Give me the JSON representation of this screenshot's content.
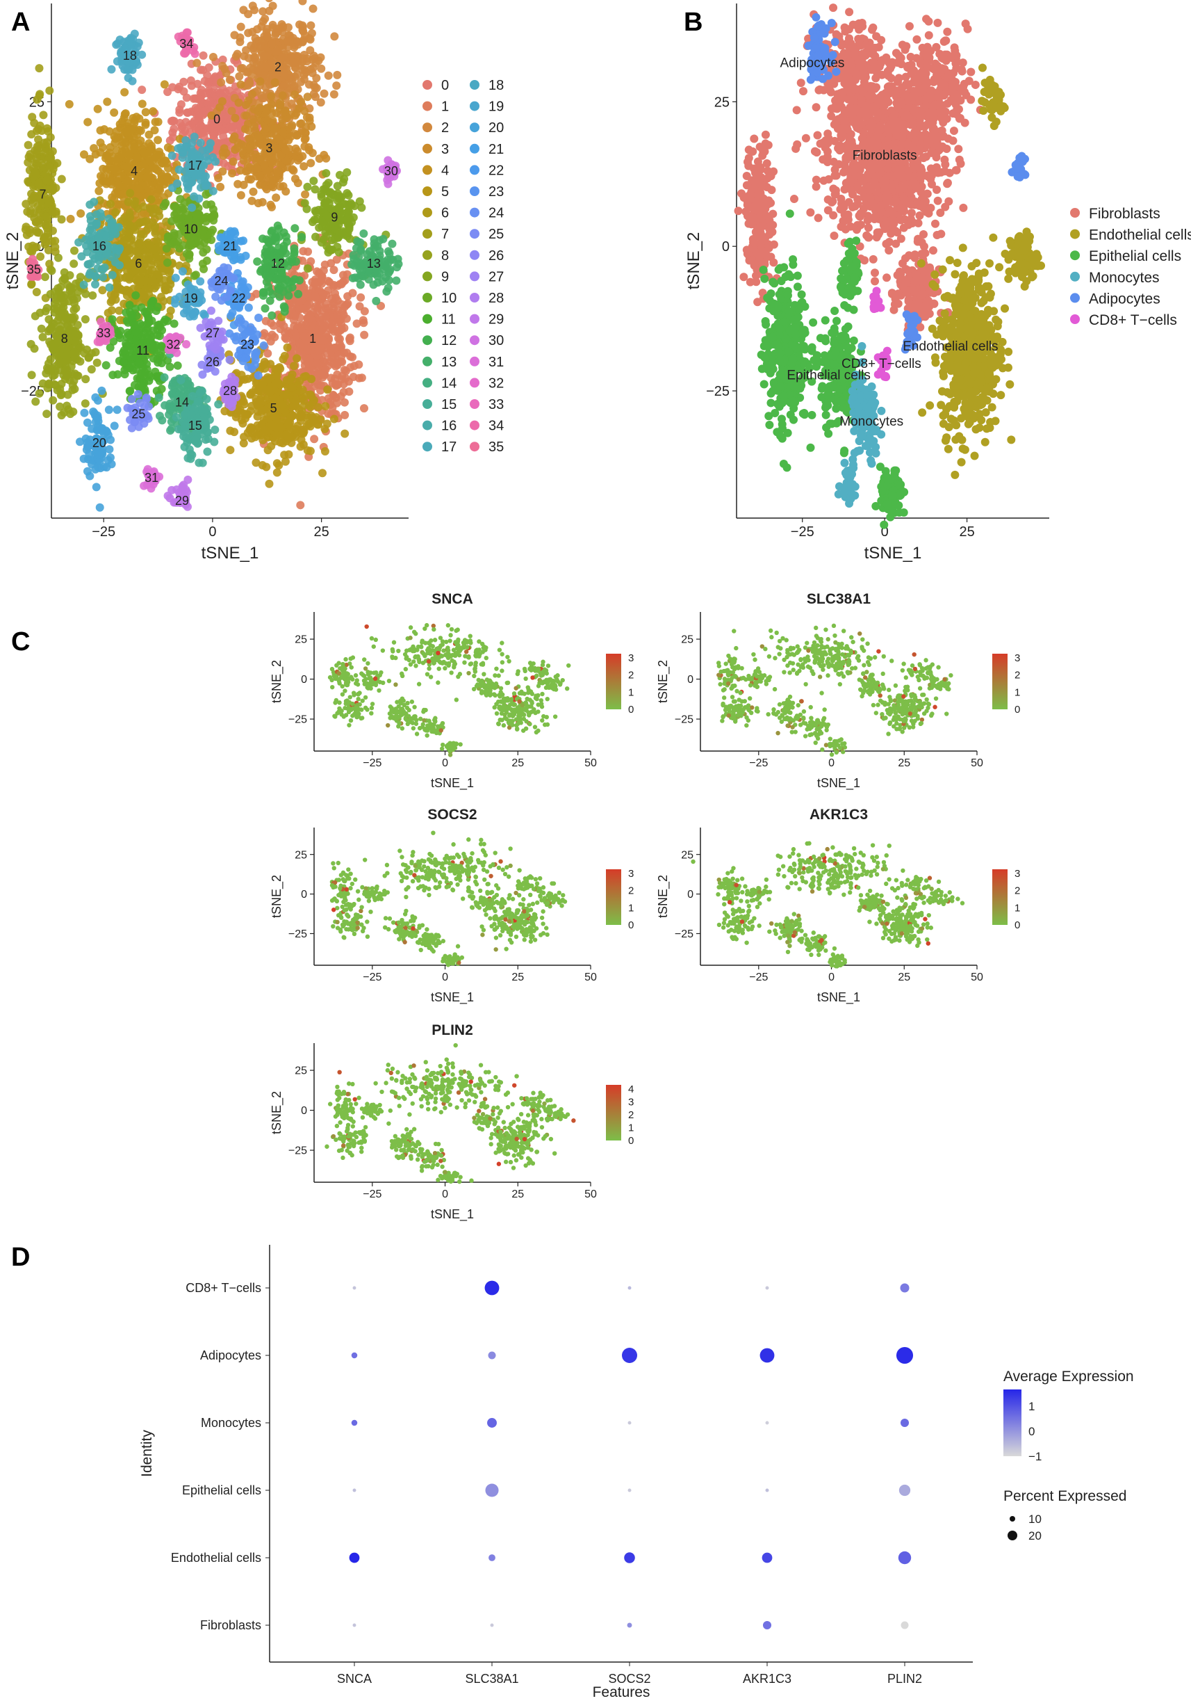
{
  "figure": {
    "panels": [
      {
        "id": "A",
        "label": "A"
      },
      {
        "id": "B",
        "label": "B"
      },
      {
        "id": "C",
        "label": "C"
      },
      {
        "id": "D",
        "label": "D"
      }
    ]
  },
  "chart_data": [
    {
      "panel": "A",
      "type": "scatter",
      "title": "",
      "xlabel": "tSNE_1",
      "ylabel": "tSNE_2",
      "xlim": [
        -37,
        45
      ],
      "ylim": [
        -47,
        42
      ],
      "xticks": [
        -25,
        0,
        25
      ],
      "yticks": [
        -25,
        0,
        25
      ],
      "tick_labels_x": [
        "−25",
        "0",
        "25"
      ],
      "tick_labels_y": [
        "−25",
        "0",
        "25"
      ],
      "legend_position": "right",
      "clusters": [
        {
          "id": "0",
          "x": 1,
          "y": 22,
          "sx": 9,
          "sy": 8,
          "color": "#E2786E"
        },
        {
          "id": "1",
          "x": 23,
          "y": -16,
          "sx": 9,
          "sy": 13,
          "color": "#DE7C5B"
        },
        {
          "id": "2",
          "x": 15,
          "y": 31,
          "sx": 9,
          "sy": 8,
          "color": "#D2883D"
        },
        {
          "id": "3",
          "x": 13,
          "y": 17,
          "sx": 8,
          "sy": 8,
          "color": "#CB8B2C"
        },
        {
          "id": "4",
          "x": -18,
          "y": 13,
          "sx": 8,
          "sy": 10,
          "color": "#C39120"
        },
        {
          "id": "5",
          "x": 14,
          "y": -28,
          "sx": 9,
          "sy": 8,
          "color": "#B89618"
        },
        {
          "id": "6",
          "x": -17,
          "y": -3,
          "sx": 8,
          "sy": 9,
          "color": "#AF9A18"
        },
        {
          "id": "7",
          "x": -39,
          "y": 9,
          "sx": 3.5,
          "sy": 12,
          "color": "#A39E1B"
        },
        {
          "id": "8",
          "x": -34,
          "y": -16,
          "sx": 5,
          "sy": 10,
          "color": "#96A21D"
        },
        {
          "id": "9",
          "x": 28,
          "y": 5,
          "sx": 5,
          "sy": 6,
          "color": "#84A620"
        },
        {
          "id": "10",
          "x": -5,
          "y": 3,
          "sx": 5,
          "sy": 6,
          "color": "#6BAA26"
        },
        {
          "id": "11",
          "x": -16,
          "y": -18,
          "sx": 6,
          "sy": 7,
          "color": "#4BAE2E"
        },
        {
          "id": "12",
          "x": 15,
          "y": -3,
          "sx": 4,
          "sy": 6,
          "color": "#43AF4F"
        },
        {
          "id": "13",
          "x": 37,
          "y": -3,
          "sx": 5,
          "sy": 4,
          "color": "#44AF6A"
        },
        {
          "id": "14",
          "x": -7,
          "y": -27,
          "sx": 4,
          "sy": 5,
          "color": "#45AF82"
        },
        {
          "id": "15",
          "x": -4,
          "y": -31,
          "sx": 4,
          "sy": 5,
          "color": "#47AE98"
        },
        {
          "id": "16",
          "x": -26,
          "y": 0,
          "sx": 4,
          "sy": 5,
          "color": "#49ACAA"
        },
        {
          "id": "17",
          "x": -4,
          "y": 14,
          "sx": 4,
          "sy": 4,
          "color": "#4AAAB9"
        },
        {
          "id": "18",
          "x": -19,
          "y": 33,
          "sx": 3,
          "sy": 4,
          "color": "#4AA8C3"
        },
        {
          "id": "19",
          "x": -5,
          "y": -9,
          "sx": 3,
          "sy": 3,
          "color": "#49A6CE"
        },
        {
          "id": "20",
          "x": -26,
          "y": -34,
          "sx": 3,
          "sy": 6,
          "color": "#46A3DA"
        },
        {
          "id": "21",
          "x": 4,
          "y": 0,
          "sx": 3,
          "sy": 3,
          "color": "#459FE6"
        },
        {
          "id": "22",
          "x": 6,
          "y": -9,
          "sx": 2.5,
          "sy": 3,
          "color": "#4C9AEC"
        },
        {
          "id": "23",
          "x": 8,
          "y": -17,
          "sx": 2.5,
          "sy": 4,
          "color": "#5994EF"
        },
        {
          "id": "24",
          "x": 2,
          "y": -6,
          "sx": 2.5,
          "sy": 2.5,
          "color": "#6890F2"
        },
        {
          "id": "25",
          "x": -17,
          "y": -29,
          "sx": 2.5,
          "sy": 2.5,
          "color": "#7B8BF4"
        },
        {
          "id": "26",
          "x": 0,
          "y": -20,
          "sx": 2,
          "sy": 2,
          "color": "#8E86F4"
        },
        {
          "id": "27",
          "x": 0,
          "y": -15,
          "sx": 2,
          "sy": 2.5,
          "color": "#9F82F3"
        },
        {
          "id": "28",
          "x": 4,
          "y": -25,
          "sx": 2,
          "sy": 2.5,
          "color": "#B07DEF"
        },
        {
          "id": "29",
          "x": -7,
          "y": -44,
          "sx": 2,
          "sy": 2,
          "color": "#C078EA"
        },
        {
          "id": "30",
          "x": 41,
          "y": 13,
          "sx": 1.5,
          "sy": 2,
          "color": "#CF72E2"
        },
        {
          "id": "31",
          "x": -14,
          "y": -40,
          "sx": 1.5,
          "sy": 1.5,
          "color": "#DB6ED8"
        },
        {
          "id": "32",
          "x": -9,
          "y": -17,
          "sx": 1.5,
          "sy": 1.5,
          "color": "#E46BCB"
        },
        {
          "id": "33",
          "x": -25,
          "y": -15,
          "sx": 1.5,
          "sy": 1.5,
          "color": "#E96ABC"
        },
        {
          "id": "34",
          "x": -6,
          "y": 35,
          "sx": 1.5,
          "sy": 1.5,
          "color": "#EC6AAA"
        },
        {
          "id": "35",
          "x": -41,
          "y": -4,
          "sx": 1.2,
          "sy": 1.5,
          "color": "#ED6D97"
        }
      ]
    },
    {
      "panel": "B",
      "type": "scatter",
      "title": "",
      "xlabel": "tSNE_1",
      "ylabel": "tSNE_2",
      "xlim": [
        -45,
        50
      ],
      "ylim": [
        -47,
        42
      ],
      "xticks": [
        -25,
        0,
        25
      ],
      "yticks": [
        -25,
        0,
        25
      ],
      "tick_labels_x": [
        "−25",
        "0",
        "25"
      ],
      "tick_labels_y": [
        "−25",
        "0",
        "25"
      ],
      "legend_position": "right",
      "series": [
        {
          "name": "Fibroblasts",
          "color": "#E2786E"
        },
        {
          "name": "Endothelial cells",
          "color": "#B0A022"
        },
        {
          "name": "Epithelial cells",
          "color": "#4CB849"
        },
        {
          "name": "Monocytes",
          "color": "#52AFC3"
        },
        {
          "name": "Adipocytes",
          "color": "#5B8DEE"
        },
        {
          "name": "CD8+ T−cells",
          "color": "#E25AD6"
        }
      ],
      "annotations": [
        "Adipocytes",
        "Fibroblasts",
        "CD8+ T−cells",
        "Endothelial cells",
        "Epithelial cells",
        "Monocytes"
      ]
    },
    {
      "panel": "C",
      "type": "scatter",
      "subtype": "feature-plots",
      "xlabel": "tSNE_1",
      "ylabel": "tSNE_2",
      "xlim": [
        -45,
        50
      ],
      "ylim": [
        -45,
        42
      ],
      "xticks": [
        -25,
        0,
        25,
        50
      ],
      "yticks": [
        -25,
        0,
        25
      ],
      "tick_labels_x": [
        "−25",
        "0",
        "25",
        "50"
      ],
      "tick_labels_y": [
        "−25",
        "0",
        "25"
      ],
      "color_low": "#7DBE49",
      "color_high": "#D63C28",
      "plots": [
        {
          "gene": "SNCA",
          "colorbar_ticks": [
            "3",
            "2",
            "1",
            "0"
          ],
          "max": 3
        },
        {
          "gene": "SLC38A1",
          "colorbar_ticks": [
            "3",
            "2",
            "1",
            "0"
          ],
          "max": 3
        },
        {
          "gene": "SOCS2",
          "colorbar_ticks": [
            "3",
            "2",
            "1",
            "0"
          ],
          "max": 3
        },
        {
          "gene": "AKR1C3",
          "colorbar_ticks": [
            "3",
            "2",
            "1",
            "0"
          ],
          "max": 3
        },
        {
          "gene": "PLIN2",
          "colorbar_ticks": [
            "4",
            "3",
            "2",
            "1",
            "0"
          ],
          "max": 4
        }
      ]
    },
    {
      "panel": "D",
      "type": "scatter",
      "subtype": "dot-plot",
      "xlabel": "Features",
      "ylabel": "Identity",
      "features": [
        "SNCA",
        "SLC38A1",
        "SOCS2",
        "AKR1C3",
        "PLIN2"
      ],
      "identities": [
        "CD8+ T−cells",
        "Adipocytes",
        "Monocytes",
        "Epithelial cells",
        "Endothelial cells",
        "Fibroblasts"
      ],
      "avg_expression": [
        [
          -1.3,
          1.6,
          -1.1,
          -1.4,
          0.1
        ],
        [
          0.3,
          -0.2,
          1.4,
          1.5,
          1.6
        ],
        [
          0.4,
          0.5,
          -1.4,
          -1.5,
          0.4
        ],
        [
          -1.2,
          -0.3,
          -1.4,
          -1.2,
          -0.8
        ],
        [
          1.7,
          0.0,
          1.3,
          1.1,
          0.6
        ],
        [
          -1.3,
          -1.4,
          -0.3,
          0.3,
          -1.7
        ]
      ],
      "pct_expressed": [
        [
          1,
          18,
          1,
          1,
          7
        ],
        [
          3,
          5,
          20,
          18,
          24
        ],
        [
          3,
          8,
          1,
          1,
          6
        ],
        [
          1,
          15,
          1,
          1,
          11
        ],
        [
          9,
          4,
          10,
          9,
          14
        ],
        [
          1,
          1,
          2,
          6,
          5
        ]
      ],
      "legend": {
        "color_title": "Average Expression",
        "color_ticks": [
          "1",
          "0",
          "−1"
        ],
        "color_low": "#D9D9D9",
        "color_high": "#2626E8",
        "size_title": "Percent Expressed",
        "size_ticks": [
          "10",
          "20"
        ]
      }
    }
  ]
}
